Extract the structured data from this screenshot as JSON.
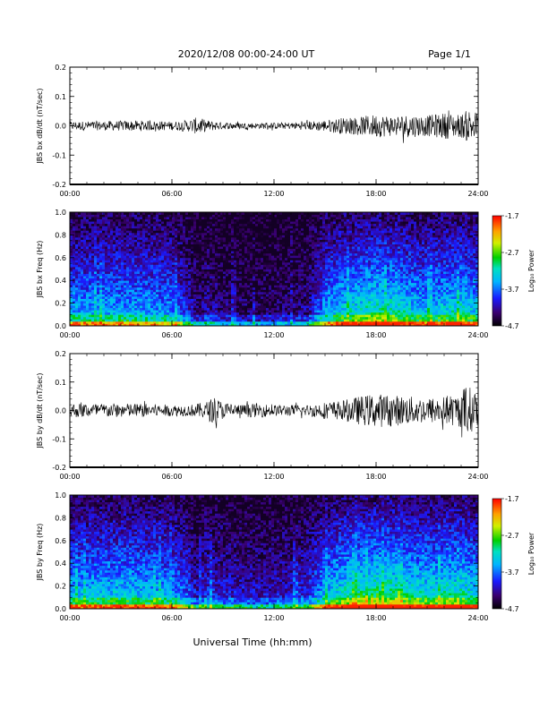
{
  "header": {
    "title": "2020/12/08  00:00-24:00 UT",
    "page": "Page 1/1"
  },
  "x_axis_title": "Universal Time (hh:mm)",
  "chart_data": [
    {
      "type": "line",
      "ylabel": "JBS bx dB/dt (nT/sec)",
      "xlim": [
        "00:00",
        "24:00"
      ],
      "x_ticks": [
        "00:00",
        "06:00",
        "12:00",
        "18:00",
        "24:00"
      ],
      "ylim": [
        -0.2,
        0.2
      ],
      "y_ticks": [
        "0.2",
        "0.1",
        "0.0",
        "-0.1",
        "-0.2"
      ],
      "envelope": {
        "x_hours": [
          0,
          2,
          4,
          6,
          7,
          7.5,
          8,
          9,
          11,
          13,
          14,
          15,
          16,
          17,
          18,
          19,
          20,
          21,
          22,
          23,
          23.5,
          24
        ],
        "amplitude": [
          0.015,
          0.016,
          0.018,
          0.015,
          0.02,
          0.03,
          0.02,
          0.012,
          0.01,
          0.012,
          0.015,
          0.02,
          0.028,
          0.03,
          0.04,
          0.035,
          0.04,
          0.035,
          0.045,
          0.04,
          0.06,
          0.045
        ]
      },
      "line_color": "#000000"
    },
    {
      "type": "heatmap",
      "ylabel": "JBS bx Freq (Hz)",
      "xlim": [
        "00:00",
        "24:00"
      ],
      "x_ticks": [
        "00:00",
        "06:00",
        "12:00",
        "18:00",
        "24:00"
      ],
      "ylim": [
        0.0,
        1.0
      ],
      "y_ticks": [
        "1.0",
        "0.8",
        "0.6",
        "0.4",
        "0.2",
        "0.0"
      ],
      "colorbar": {
        "label": "Log₁₀ Power",
        "ticks": [
          "-1.7",
          "-2.7",
          "-3.7",
          "-4.7"
        ],
        "range": [
          -4.7,
          -1.7
        ]
      },
      "activity_profile": {
        "x_hours": [
          0,
          2,
          4,
          6,
          7,
          7.5,
          8,
          9,
          11,
          13,
          14,
          15,
          16,
          17,
          18,
          19,
          20,
          21,
          22,
          23,
          24
        ],
        "level": [
          0.55,
          0.55,
          0.55,
          0.5,
          0.3,
          0.15,
          0.25,
          0.15,
          0.12,
          0.15,
          0.2,
          0.55,
          0.65,
          0.7,
          0.75,
          0.72,
          0.65,
          0.6,
          0.65,
          0.7,
          0.6
        ]
      }
    },
    {
      "type": "line",
      "ylabel": "JBS by dB/dt (nT/sec)",
      "xlim": [
        "00:00",
        "24:00"
      ],
      "x_ticks": [
        "00:00",
        "06:00",
        "12:00",
        "18:00",
        "24:00"
      ],
      "ylim": [
        -0.2,
        0.2
      ],
      "y_ticks": [
        "0.2",
        "0.1",
        "0.0",
        "-0.1",
        "-0.2"
      ],
      "envelope": {
        "x_hours": [
          0,
          2,
          4,
          6,
          7,
          8,
          8.5,
          9,
          10,
          11,
          12,
          14,
          15,
          16,
          17,
          18,
          19,
          20,
          21,
          22,
          23,
          23.3,
          24
        ],
        "amplitude": [
          0.025,
          0.025,
          0.025,
          0.02,
          0.02,
          0.03,
          0.05,
          0.03,
          0.02,
          0.025,
          0.02,
          0.02,
          0.03,
          0.035,
          0.05,
          0.06,
          0.055,
          0.05,
          0.045,
          0.05,
          0.06,
          0.1,
          0.05
        ]
      },
      "line_color": "#000000"
    },
    {
      "type": "heatmap",
      "ylabel": "JBS by Freq (Hz)",
      "xlim": [
        "00:00",
        "24:00"
      ],
      "x_ticks": [
        "00:00",
        "06:00",
        "12:00",
        "18:00",
        "24:00"
      ],
      "ylim": [
        0.0,
        1.0
      ],
      "y_ticks": [
        "1.0",
        "0.8",
        "0.6",
        "0.4",
        "0.2",
        "0.0"
      ],
      "colorbar": {
        "label": "Log₁₀ Power",
        "ticks": [
          "-1.7",
          "-2.7",
          "-3.7",
          "-4.7"
        ],
        "range": [
          -4.7,
          -1.7
        ]
      },
      "activity_profile": {
        "x_hours": [
          0,
          2,
          4,
          6,
          7,
          7.5,
          8,
          9,
          11,
          13,
          14,
          15,
          16,
          17,
          18,
          19,
          20,
          21,
          22,
          23,
          24
        ],
        "level": [
          0.6,
          0.62,
          0.62,
          0.55,
          0.4,
          0.25,
          0.35,
          0.3,
          0.25,
          0.28,
          0.35,
          0.6,
          0.7,
          0.78,
          0.82,
          0.78,
          0.72,
          0.7,
          0.72,
          0.75,
          0.65
        ]
      }
    }
  ]
}
